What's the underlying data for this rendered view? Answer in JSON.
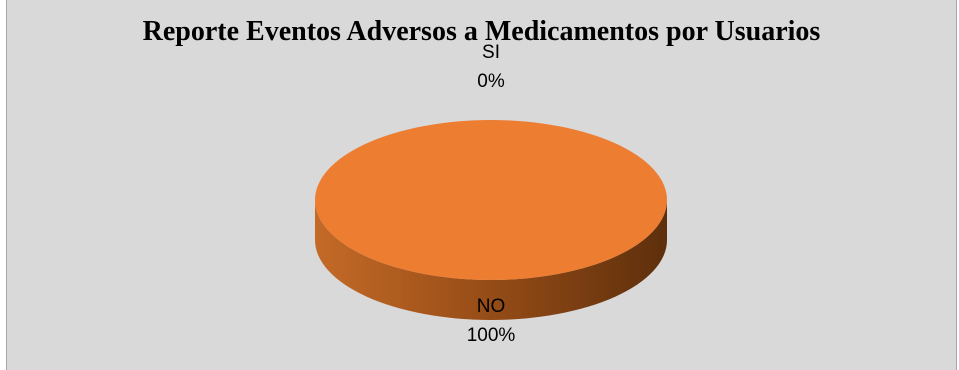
{
  "chart_data": {
    "type": "pie",
    "title": "Reporte Eventos Adversos a Medicamentos por Usuarios",
    "style": "3d",
    "categories": [
      "SI",
      "NO"
    ],
    "values": [
      0,
      100
    ],
    "value_labels": [
      "0%",
      "100%"
    ],
    "colors": [
      "#4472c4",
      "#ed7d31"
    ],
    "legend": "none"
  }
}
